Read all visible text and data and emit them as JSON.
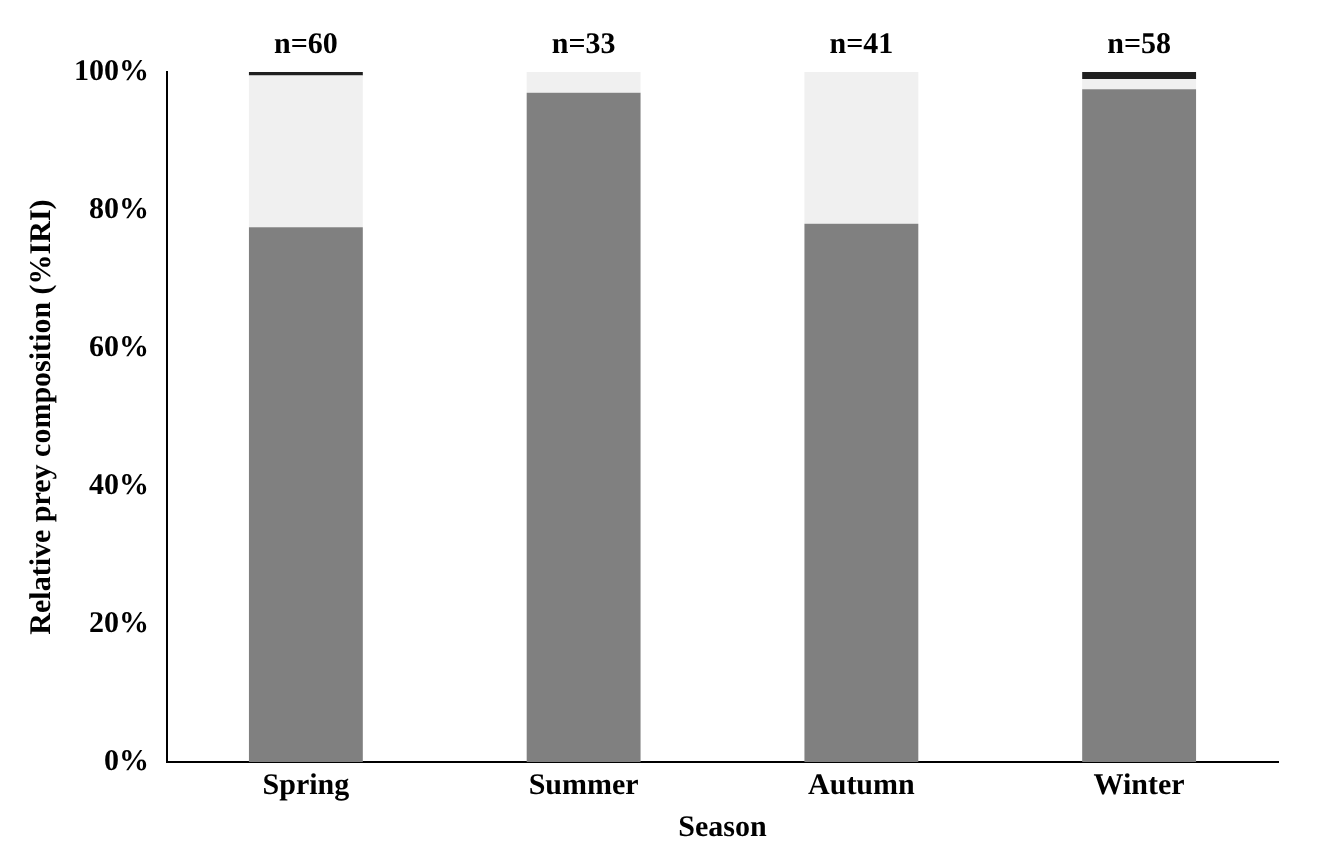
{
  "chart_data": {
    "type": "bar",
    "stacked": true,
    "xlabel": "Season",
    "ylabel": "Relative prey composition (%IRI)",
    "categories": [
      "Spring",
      "Summer",
      "Autumn",
      "Winter"
    ],
    "series": [
      {
        "color": "#808080",
        "values": [
          77.5,
          97,
          78,
          97.5
        ]
      },
      {
        "color": "#f0f0f0",
        "values": [
          22,
          3,
          22,
          1.5
        ]
      },
      {
        "color": "#202020",
        "values": [
          0.5,
          0,
          0,
          1
        ]
      }
    ],
    "ylim": [
      0,
      100
    ],
    "yticks": [
      {
        "value": 0,
        "label": "0%"
      },
      {
        "value": 20,
        "label": "20%"
      },
      {
        "value": 40,
        "label": "40%"
      },
      {
        "value": 60,
        "label": "60%"
      },
      {
        "value": 80,
        "label": "80%"
      },
      {
        "value": 100,
        "label": "100%"
      }
    ],
    "annotations": [
      {
        "text": "n=60",
        "x": "Spring",
        "y": 100
      },
      {
        "text": "n=33",
        "x": "Summer",
        "y": 100
      },
      {
        "text": "n=41",
        "x": "Autumn",
        "y": 100
      },
      {
        "text": "n=58",
        "x": "Winter",
        "y": 100
      }
    ],
    "grid": false,
    "legend": false
  }
}
